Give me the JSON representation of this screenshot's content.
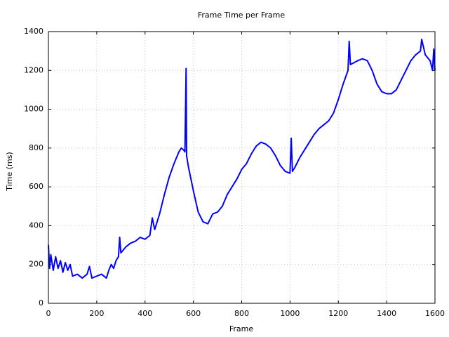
{
  "chart_data": {
    "type": "line",
    "title": "Frame Time per Frame",
    "x_label": "Frame",
    "y_label": "Time (ms)",
    "x": [
      0,
      5,
      10,
      20,
      30,
      40,
      50,
      60,
      70,
      80,
      90,
      100,
      120,
      140,
      160,
      170,
      180,
      200,
      220,
      240,
      250,
      260,
      270,
      280,
      290,
      295,
      300,
      320,
      340,
      360,
      380,
      400,
      420,
      430,
      440,
      460,
      480,
      500,
      520,
      540,
      550,
      560,
      565,
      570,
      572,
      580,
      600,
      620,
      640,
      660,
      680,
      700,
      720,
      740,
      760,
      780,
      800,
      820,
      840,
      860,
      880,
      900,
      920,
      940,
      960,
      980,
      1000,
      1005,
      1010,
      1020,
      1040,
      1060,
      1080,
      1100,
      1120,
      1140,
      1160,
      1180,
      1200,
      1220,
      1240,
      1245,
      1250,
      1280,
      1300,
      1320,
      1340,
      1360,
      1380,
      1400,
      1420,
      1440,
      1460,
      1480,
      1500,
      1520,
      1540,
      1545,
      1560,
      1580,
      1590,
      1595,
      1600
    ],
    "values": [
      300,
      180,
      250,
      170,
      240,
      180,
      220,
      160,
      210,
      170,
      200,
      140,
      150,
      130,
      150,
      190,
      130,
      140,
      150,
      130,
      170,
      200,
      180,
      220,
      240,
      340,
      260,
      290,
      310,
      320,
      340,
      330,
      350,
      440,
      380,
      460,
      560,
      650,
      720,
      780,
      800,
      790,
      780,
      1210,
      760,
      700,
      580,
      470,
      420,
      410,
      460,
      470,
      500,
      560,
      600,
      640,
      690,
      720,
      770,
      810,
      830,
      820,
      800,
      760,
      710,
      680,
      670,
      850,
      680,
      700,
      750,
      790,
      830,
      870,
      900,
      920,
      940,
      980,
      1050,
      1130,
      1200,
      1350,
      1230,
      1250,
      1260,
      1250,
      1200,
      1130,
      1090,
      1080,
      1080,
      1100,
      1150,
      1200,
      1250,
      1280,
      1300,
      1360,
      1280,
      1250,
      1200,
      1310,
      1200
    ],
    "color": "#0000ff",
    "xlim": [
      0,
      1600
    ],
    "xticks": [
      0,
      200,
      400,
      600,
      800,
      1000,
      1200,
      1400,
      1600
    ],
    "ylim": [
      0,
      1400
    ],
    "yticks": [
      0,
      200,
      400,
      600,
      800,
      1000,
      1200,
      1400
    ],
    "grid": true
  }
}
